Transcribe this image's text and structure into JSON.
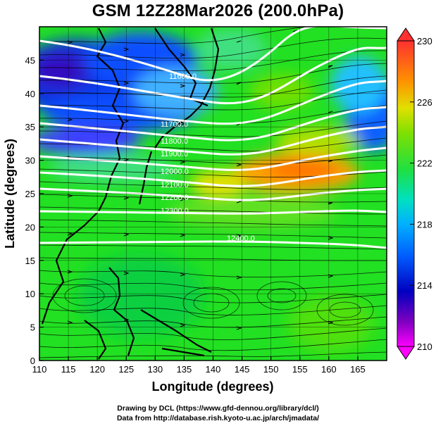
{
  "title": "GSM 12Z28Mar2026 (200.0hPa)",
  "x_axis": {
    "label": "Longitude (degrees)",
    "ticks": [
      "110",
      "115",
      "120",
      "125",
      "130",
      "135",
      "140",
      "145",
      "150",
      "155",
      "160",
      "165"
    ],
    "range": [
      110,
      170
    ]
  },
  "y_axis": {
    "label": "Latitude  (degrees)",
    "ticks": [
      "0",
      "5",
      "10",
      "15",
      "20",
      "25",
      "30",
      "35",
      "40",
      "45"
    ],
    "range": [
      0,
      50
    ]
  },
  "colorbar": {
    "ticks": [
      "210",
      "214",
      "218",
      "222",
      "226",
      "230"
    ],
    "range": [
      210,
      230
    ],
    "colors": [
      "#ff00ff",
      "#8000c0",
      "#0000c0",
      "#0040ff",
      "#00a0ff",
      "#00e0e0",
      "#00e080",
      "#20e020",
      "#80e000",
      "#c0e000",
      "#ffe000",
      "#ffa000",
      "#ff6000",
      "#ff3030"
    ]
  },
  "contours": [
    {
      "label": "11600.0"
    },
    {
      "label": "11700.0"
    },
    {
      "label": "11800.0"
    },
    {
      "label": "11900.0"
    },
    {
      "label": "12000.0"
    },
    {
      "label": "12100.0"
    },
    {
      "label": "12200.0"
    },
    {
      "label": "12300.0"
    },
    {
      "label": "12400.0"
    }
  ],
  "credits": {
    "line1": "Drawing by DCL (https://www.gfd-dennou.org/library/dcl/)",
    "line2": "Data from http://database.rish.kyoto-u.ac.jp/arch/jmadata/"
  }
}
